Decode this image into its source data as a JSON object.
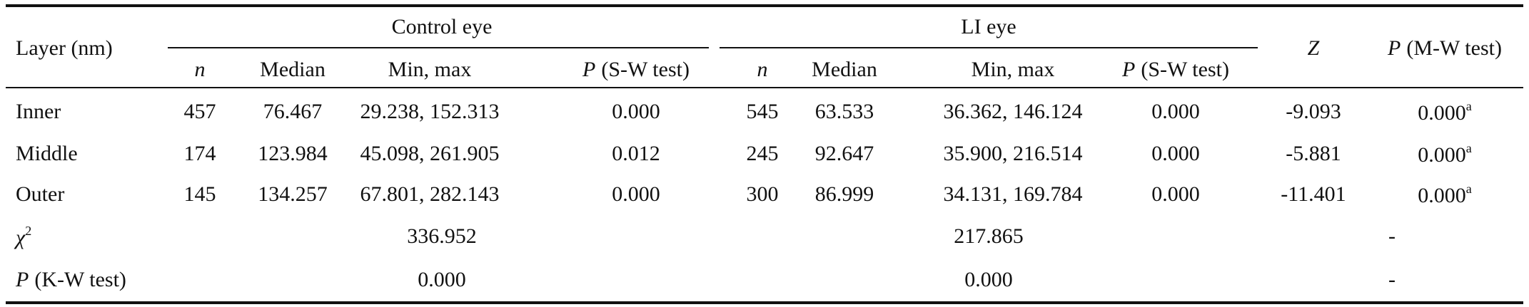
{
  "header": {
    "layer": "Layer (nm)",
    "groups": [
      {
        "name": "Control eye",
        "columns": {
          "n": "n",
          "median": "Median",
          "range": "Min, max",
          "p_symbol": "P",
          "p_test": "(S-W test)"
        }
      },
      {
        "name": "LI eye",
        "columns": {
          "n": "n",
          "median": "Median",
          "range": "Min, max",
          "p_symbol": "P",
          "p_test": "(S-W test)"
        }
      }
    ],
    "z": "Z",
    "p_symbol": "P",
    "p_test": "(M-W test)"
  },
  "rows": [
    {
      "layer": "Inner",
      "groups": [
        {
          "n": "457",
          "median": "76.467",
          "range": "29.238, 152.313",
          "p": "0.000"
        },
        {
          "n": "545",
          "median": "63.533",
          "range": "36.362, 146.124",
          "p": "0.000"
        }
      ],
      "z": "-9.093",
      "p": "0.000",
      "note": "a"
    },
    {
      "layer": "Middle",
      "groups": [
        {
          "n": "174",
          "median": "123.984",
          "range": "45.098, 261.905",
          "p": "0.012"
        },
        {
          "n": "245",
          "median": "92.647",
          "range": "35.900, 216.514",
          "p": "0.000"
        }
      ],
      "z": "-5.881",
      "p": "0.000",
      "note": "a"
    },
    {
      "layer": "Outer",
      "groups": [
        {
          "n": "145",
          "median": "134.257",
          "range": "67.801, 282.143",
          "p": "0.000"
        },
        {
          "n": "300",
          "median": "86.999",
          "range": "34.131, 169.784",
          "p": "0.000"
        }
      ],
      "z": "-11.401",
      "p": "0.000",
      "note": "a"
    }
  ],
  "chi_square": {
    "symbol": "χ",
    "sup": "2",
    "groups": [
      "336.952",
      "217.865"
    ],
    "mw": "-"
  },
  "kruskal_wallis": {
    "p_symbol": "P",
    "p_test": "(K-W test)",
    "groups": [
      "0.000",
      "0.000"
    ],
    "mw": "-"
  }
}
